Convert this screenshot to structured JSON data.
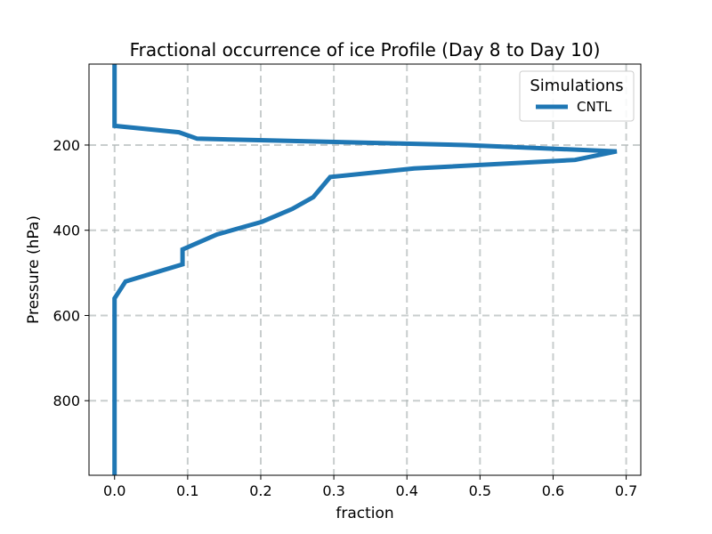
{
  "chart_data": {
    "type": "line",
    "title": "Fractional occurrence of ice Profile (Day 8 to Day 10)",
    "xlabel": "fraction",
    "ylabel": "Pressure (hPa)",
    "xlim": [
      -0.035,
      0.72
    ],
    "ylim": [
      975,
      10
    ],
    "y_inverted": true,
    "x_ticks": [
      0.0,
      0.1,
      0.2,
      0.3,
      0.4,
      0.5,
      0.6,
      0.7
    ],
    "x_tick_labels": [
      "0.0",
      "0.1",
      "0.2",
      "0.3",
      "0.4",
      "0.5",
      "0.6",
      "0.7"
    ],
    "y_ticks": [
      200,
      400,
      600,
      800
    ],
    "y_tick_labels": [
      "200",
      "400",
      "600",
      "800"
    ],
    "grid": true,
    "legend": {
      "title": "Simulations",
      "placement": "top-right"
    },
    "series": [
      {
        "name": "CNTL",
        "color": "#1f77b4",
        "x": [
          0.0,
          0.0,
          0.088,
          0.113,
          0.48,
          0.687,
          0.63,
          0.41,
          0.295,
          0.272,
          0.243,
          0.202,
          0.14,
          0.093,
          0.093,
          0.015,
          0.0,
          0.0,
          0.0
        ],
        "y": [
          10,
          155,
          170,
          185,
          200,
          215,
          235,
          255,
          275,
          322,
          350,
          380,
          410,
          445,
          480,
          520,
          560,
          700,
          975
        ]
      }
    ]
  }
}
